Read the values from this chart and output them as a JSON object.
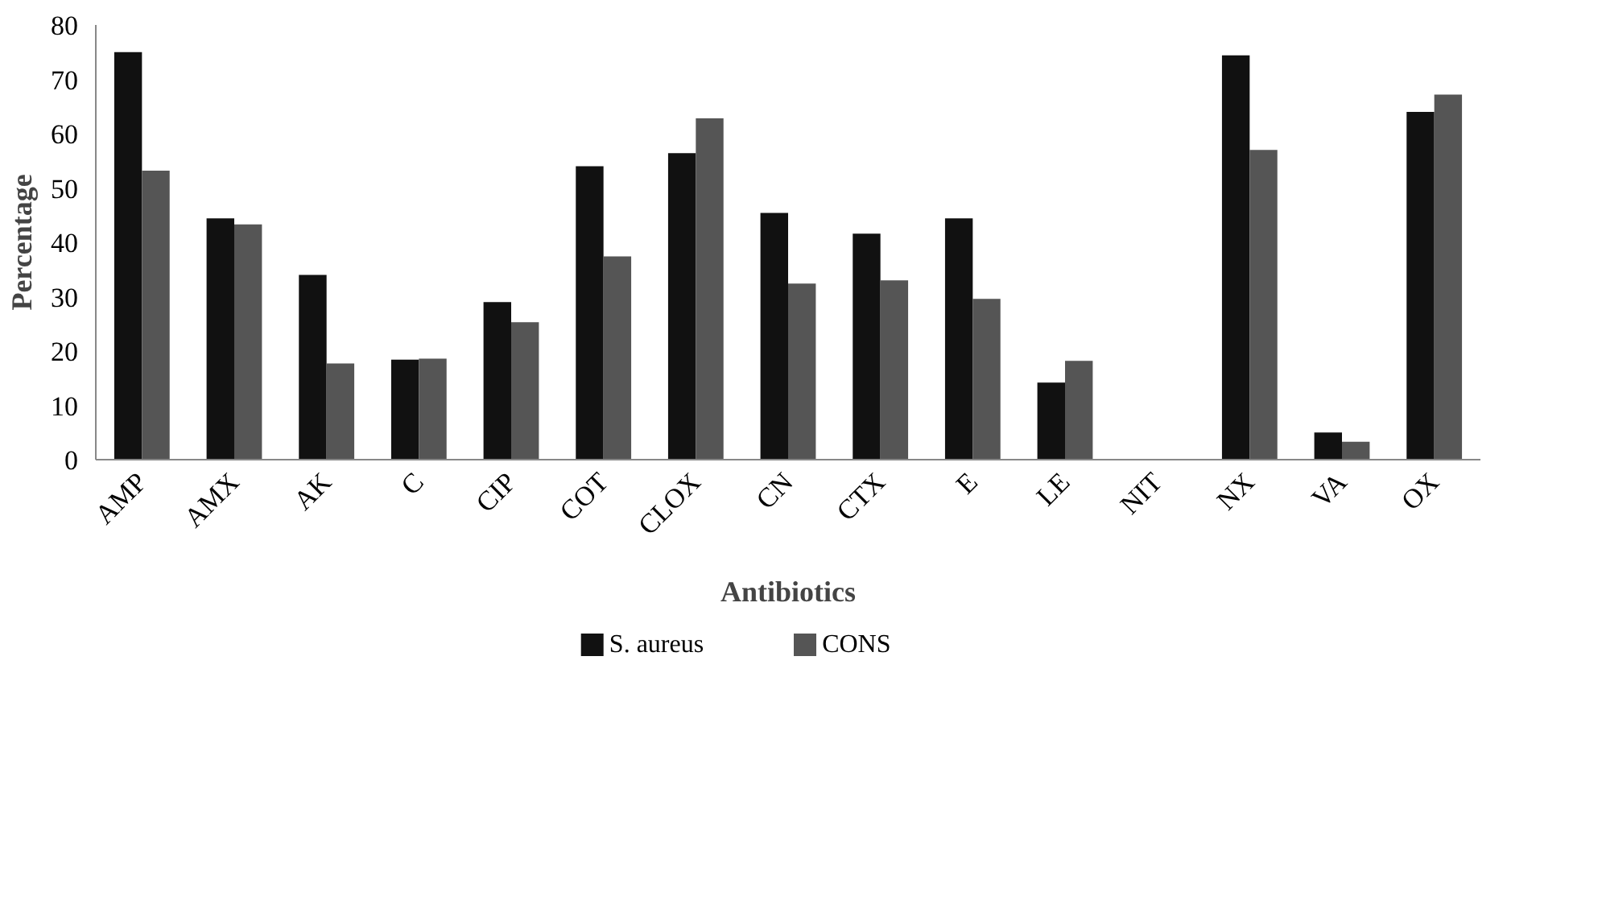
{
  "chart_data": {
    "type": "bar",
    "xlabel": "Antibiotics",
    "ylabel": "Percentage",
    "categories": [
      "AMP",
      "AMX",
      "AK",
      "C",
      "CIP",
      "COT",
      "CLOX",
      "CN",
      "CTX",
      "E",
      "LE",
      "NIT",
      "NX",
      "VA",
      "OX"
    ],
    "series": [
      {
        "name": "S. aureus",
        "color": "#111111",
        "values": [
          75,
          44.4,
          34,
          18.4,
          29,
          54,
          56.4,
          45.4,
          41.6,
          44.4,
          14.2,
          0,
          74.4,
          5,
          64
        ]
      },
      {
        "name": "CONS",
        "color": "#555555",
        "values": [
          53.2,
          43.3,
          17.7,
          18.6,
          25.3,
          37.4,
          62.8,
          32.4,
          33,
          29.6,
          18.2,
          0,
          57,
          3.3,
          67.2
        ]
      }
    ],
    "ylim": [
      0,
      80
    ],
    "yticks": [
      0,
      10,
      20,
      30,
      40,
      50,
      60,
      70,
      80
    ],
    "grid": false,
    "legend": "bottom"
  }
}
